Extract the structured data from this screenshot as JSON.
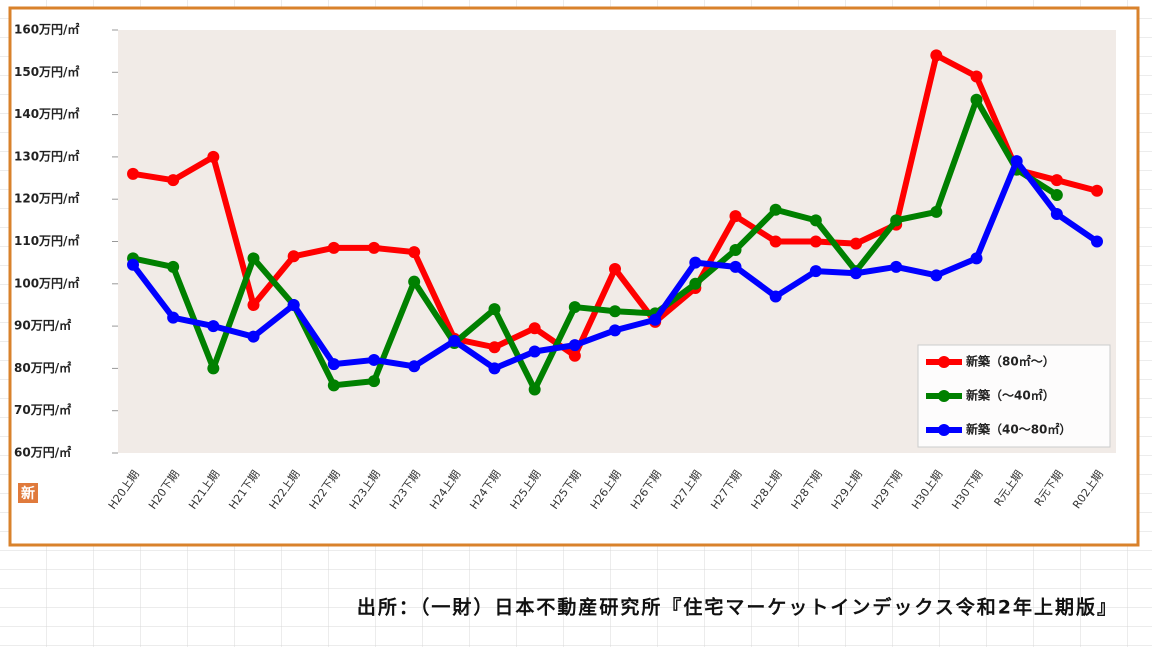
{
  "chart_data": {
    "type": "line",
    "badge": "新",
    "source": "出所：（一財）日本不動産研究所『住宅マーケットインデックス令和2年上期版』",
    "categories": [
      "H20上期",
      "H20下期",
      "H21上期",
      "H21下期",
      "H22上期",
      "H22下期",
      "H23上期",
      "H23下期",
      "H24上期",
      "H24下期",
      "H25上期",
      "H25下期",
      "H26上期",
      "H26下期",
      "H27上期",
      "H27下期",
      "H28上期",
      "H28下期",
      "H29上期",
      "H29下期",
      "H30上期",
      "H30下期",
      "R元上期",
      "R元下期",
      "R02上期"
    ],
    "series": [
      {
        "name": "新築（80㎡～）",
        "color": "#ff0000",
        "values": [
          126,
          124.5,
          130,
          95,
          106.5,
          108.5,
          108.5,
          107.5,
          87,
          85,
          89.5,
          83,
          103.5,
          91,
          99,
          116,
          110,
          110,
          109.5,
          114,
          154,
          149,
          127,
          124.5,
          122
        ]
      },
      {
        "name": "新築（～40㎡）",
        "color": "#008000",
        "values": [
          106,
          104,
          80,
          106,
          95,
          76,
          77,
          100.5,
          86,
          94,
          75,
          94.5,
          93.5,
          93,
          100,
          108,
          117.5,
          115,
          103,
          115,
          117,
          143.5,
          127,
          121,
          null
        ]
      },
      {
        "name": "新築（40～80㎡）",
        "color": "#0000ff",
        "values": [
          104.5,
          92,
          90,
          87.5,
          95,
          81,
          82,
          80.5,
          86.5,
          80,
          84,
          85.5,
          89,
          91.5,
          105,
          104,
          97,
          103,
          102.5,
          104,
          102,
          106,
          129,
          116.5,
          110
        ]
      }
    ],
    "ylim": [
      60,
      160
    ],
    "yticks": [
      {
        "value": 60,
        "label": "60万円/㎡"
      },
      {
        "value": 70,
        "label": "70万円/㎡"
      },
      {
        "value": 80,
        "label": "80万円/㎡"
      },
      {
        "value": 90,
        "label": "90万円/㎡"
      },
      {
        "value": 100,
        "label": "100万円/㎡"
      },
      {
        "value": 110,
        "label": "110万円/㎡"
      },
      {
        "value": 120,
        "label": "120万円/㎡"
      },
      {
        "value": 130,
        "label": "130万円/㎡"
      },
      {
        "value": 140,
        "label": "140万円/㎡"
      },
      {
        "value": 150,
        "label": "150万円/㎡"
      },
      {
        "value": 160,
        "label": "160万円/㎡"
      }
    ],
    "grid": false,
    "legend": "lower right"
  }
}
